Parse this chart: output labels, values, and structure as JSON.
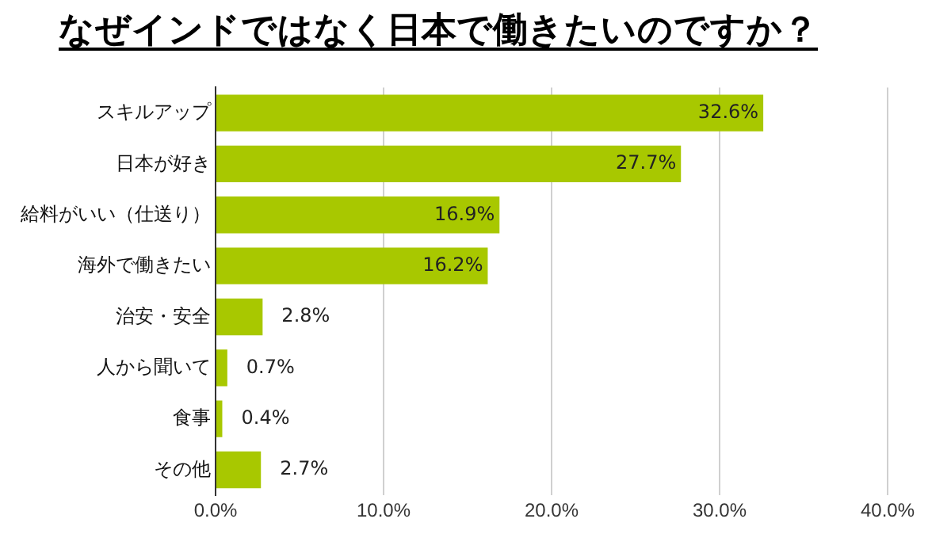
{
  "chart_data": {
    "type": "bar",
    "orientation": "horizontal",
    "title": "なぜインドではなく日本で働きたいのですか？",
    "categories": [
      "スキルアップ",
      "日本が好き",
      "給料がいい（仕送り）",
      "海外で働きたい",
      "治安・安全",
      "人から聞いて",
      "食事",
      "その他"
    ],
    "values": [
      32.6,
      27.7,
      16.9,
      16.2,
      2.8,
      0.7,
      0.4,
      2.7
    ],
    "value_labels": [
      "32.6%",
      "27.7%",
      "16.9%",
      "16.2%",
      "2.8%",
      "0.7%",
      "0.4%",
      "2.7%"
    ],
    "color": "#a8c800",
    "xlim": [
      0,
      40
    ],
    "xticks": [
      {
        "value": 0,
        "label": "0.0%"
      },
      {
        "value": 10,
        "label": "10.0%"
      },
      {
        "value": 20,
        "label": "20.0%"
      },
      {
        "value": 30,
        "label": "30.0%"
      },
      {
        "value": 40,
        "label": "40.0%"
      }
    ],
    "grid": "x"
  }
}
